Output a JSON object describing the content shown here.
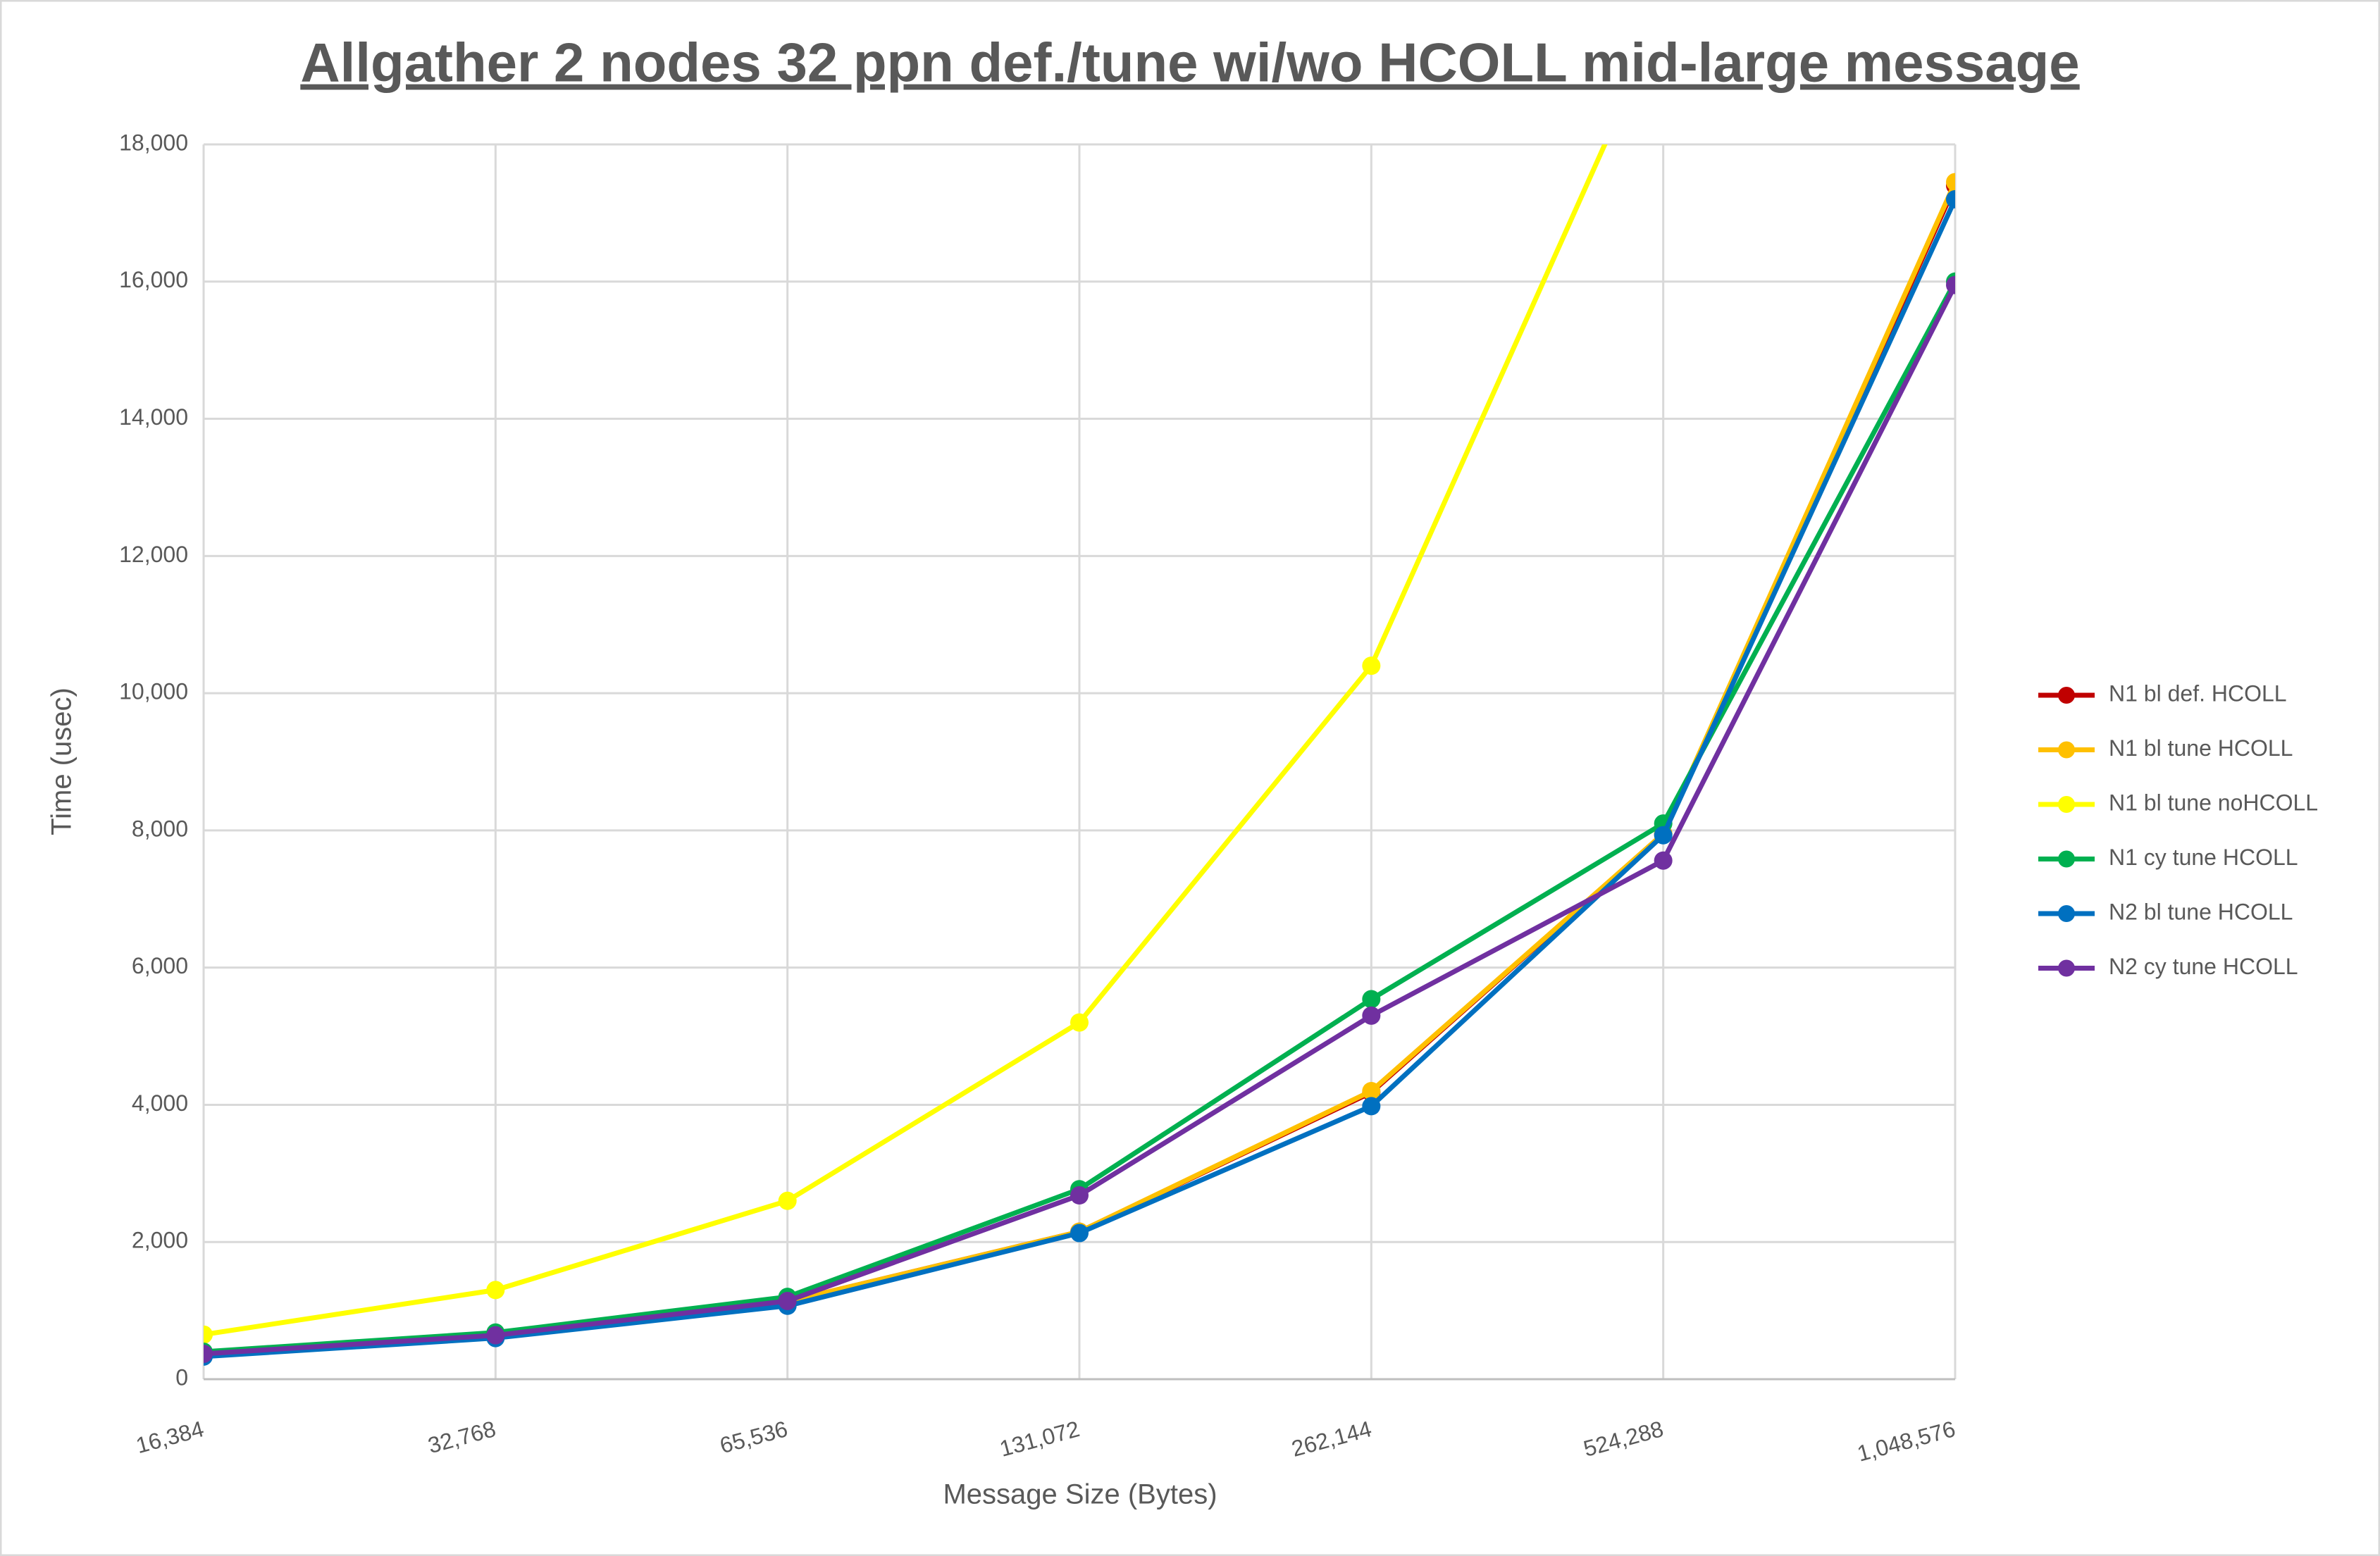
{
  "chart_data": {
    "type": "line",
    "title": "Allgather 2 nodes 32 ppn def./tune wi/wo HCOLL mid-large message",
    "x_label": "Message Size (Bytes)",
    "y_label": "Time (usec)",
    "categories": [
      "16,384",
      "32,768",
      "65,536",
      "131,072",
      "262,144",
      "524,288",
      "1,048,576"
    ],
    "series": [
      {
        "name": "N1 bl def. HCOLL",
        "color": "#c00000",
        "values": [
          380,
          640,
          1130,
          2150,
          4180,
          7950,
          17400
        ]
      },
      {
        "name": "N1 bl tune HCOLL",
        "color": "#ffc000",
        "values": [
          380,
          640,
          1130,
          2150,
          4200,
          7950,
          17450
        ]
      },
      {
        "name": "N1 bl tune noHCOLL",
        "color": "#ffff00",
        "values": [
          650,
          1300,
          2600,
          5200,
          10400,
          19900,
          null
        ]
      },
      {
        "name": "N1 cy tune HCOLL",
        "color": "#00b050",
        "values": [
          400,
          680,
          1200,
          2770,
          5540,
          8100,
          16000
        ]
      },
      {
        "name": "N2 bl tune HCOLL",
        "color": "#0070c0",
        "values": [
          330,
          600,
          1070,
          2130,
          3980,
          7930,
          17200
        ]
      },
      {
        "name": "N2 cy tune HCOLL",
        "color": "#7030a0",
        "values": [
          370,
          640,
          1140,
          2680,
          5300,
          7560,
          15950
        ]
      }
    ],
    "ylim": [
      0,
      18000
    ],
    "yticks": [
      0,
      {
        "value": 2000,
        "label": "2,000"
      },
      {
        "value": 4000,
        "label": "4,000"
      },
      {
        "value": 6000,
        "label": "6,000"
      },
      {
        "value": 8000,
        "label": "8,000"
      },
      {
        "value": 10000,
        "label": "10,000"
      },
      {
        "value": 12000,
        "label": "12,000"
      },
      {
        "value": 14000,
        "label": "14,000"
      },
      {
        "value": 16000,
        "label": "16,000"
      },
      {
        "value": 18000,
        "label": "18,000"
      }
    ],
    "grid": true,
    "legend": "right"
  }
}
